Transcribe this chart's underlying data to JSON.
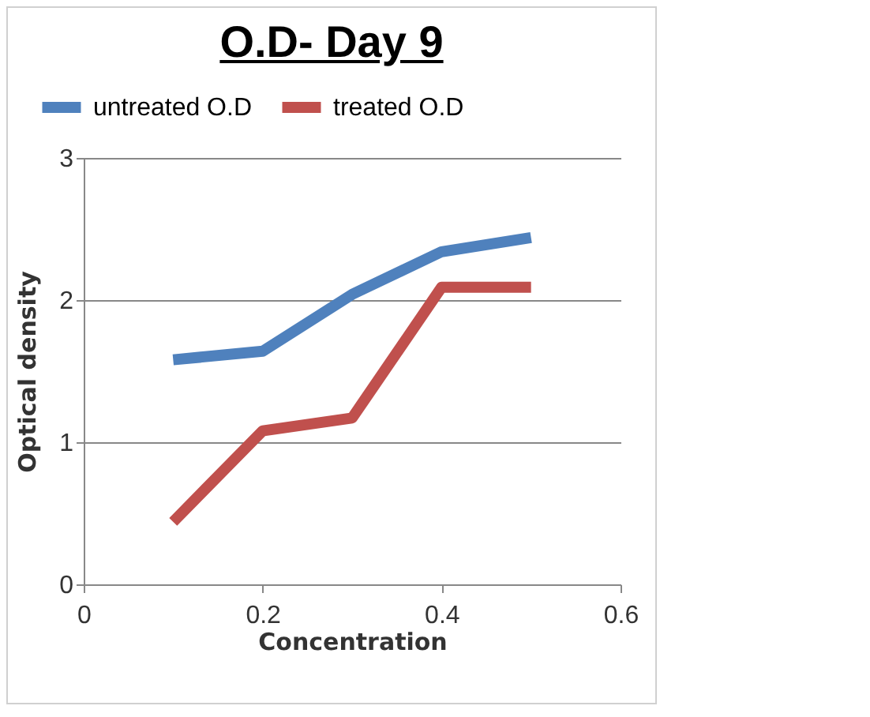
{
  "chart_data": {
    "type": "line",
    "title": "O.D- Day 9",
    "xlabel": "Concentration",
    "ylabel": "Optical density",
    "x": [
      0.1,
      0.2,
      0.3,
      0.4,
      0.5
    ],
    "series": [
      {
        "name": "untreated O.D",
        "color": "#4f81bd",
        "values": [
          1.58,
          1.64,
          2.04,
          2.34,
          2.44
        ]
      },
      {
        "name": "treated O.D",
        "color": "#c0504d",
        "values": [
          0.44,
          1.08,
          1.17,
          2.09,
          2.09
        ]
      }
    ],
    "xlim": [
      0,
      0.6
    ],
    "xticks": [
      0,
      0.2,
      0.4,
      0.6
    ],
    "ylim": [
      0,
      3
    ],
    "yticks": [
      0,
      1,
      2,
      3
    ],
    "grid": "y",
    "legend": "top",
    "marker": "none",
    "line_style": "solid"
  }
}
